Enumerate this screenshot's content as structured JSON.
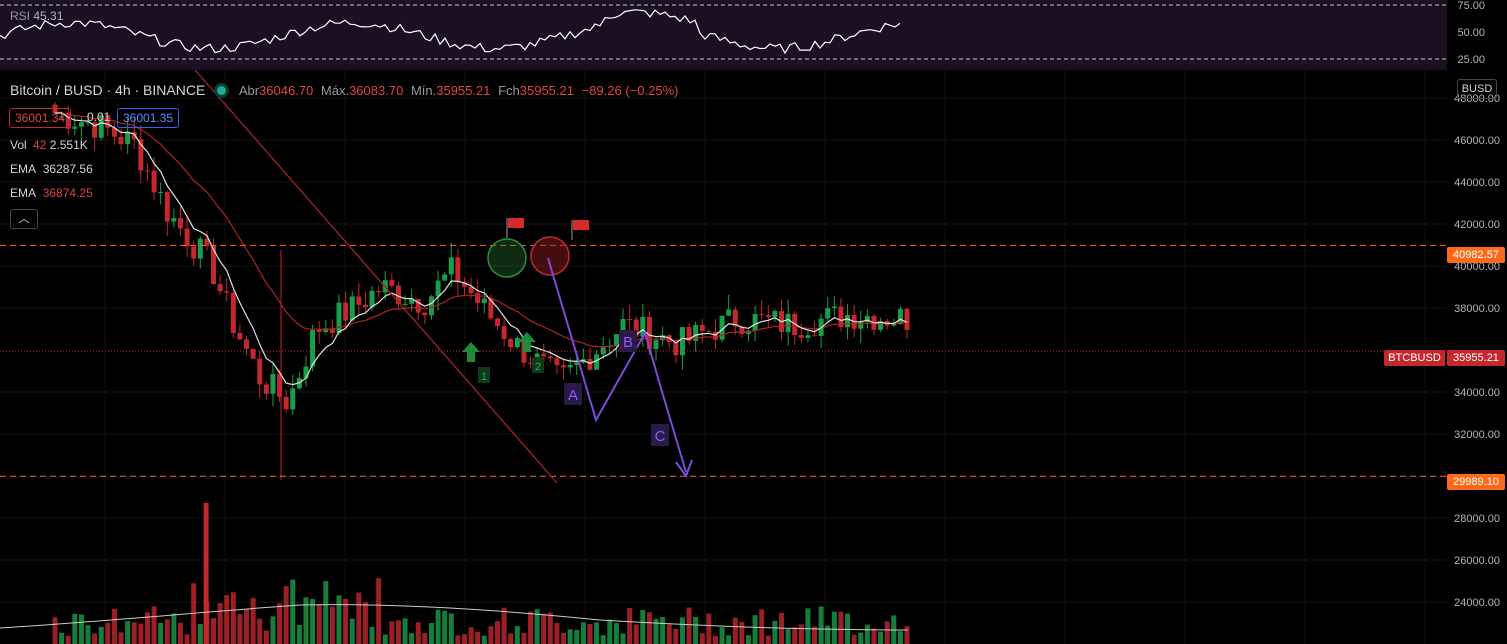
{
  "rsi": {
    "label": "RSI",
    "value": "45.31",
    "ticks": [
      "75.00",
      "50.00",
      "25.00"
    ]
  },
  "header": {
    "symbol": "Bitcoin / BUSD · 4h · BINANCE",
    "open_label": "Abr",
    "open": "36046.70",
    "high_label": "Máx.",
    "high": "36083.70",
    "low_label": "Mín.",
    "low": "35955.21",
    "close_label": "Fch",
    "close": "35955.21",
    "change": "−89.26 (−0.25%)"
  },
  "bid_ask": {
    "bid": "36001.34",
    "spread": "0.01",
    "ask": "36001.35"
  },
  "indicators": {
    "vol_label": "Vol",
    "vol_period": "42",
    "vol_value": "2.551K",
    "ema1_label": "EMA",
    "ema1_value": "36287.56",
    "ema2_label": "EMA",
    "ema2_value": "36874.25",
    "collapse_icon": "chevron-up-icon"
  },
  "currency_button": "BUSD",
  "tags": {
    "resistance": "40982.57",
    "last": "35955.21",
    "last_symbol": "BTCBUSD",
    "support": "29989.10"
  },
  "annotations": {
    "arrow1": "1",
    "arrow2": "2",
    "wave_a": "A",
    "wave_b": "B",
    "wave_c": "C"
  },
  "colors": {
    "up": "#1b9e48",
    "down": "#c2282c",
    "ema_fast": "#e0e0e0",
    "ema_slow": "#b22222",
    "orange": "#ff6a1a",
    "purple": "#7a4cd9"
  },
  "chart_data": {
    "type": "candlestick",
    "y_ticks": [
      "48000.00",
      "46000.00",
      "44000.00",
      "42000.00",
      "40000.00",
      "38000.00",
      "34000.00",
      "32000.00",
      "28000.00",
      "26000.00",
      "24000.00"
    ],
    "ylim": [
      22000,
      49200
    ],
    "levels": {
      "resistance": 40982.57,
      "support": 29989.1,
      "last": 35955.21
    },
    "candle_count": 130
  }
}
